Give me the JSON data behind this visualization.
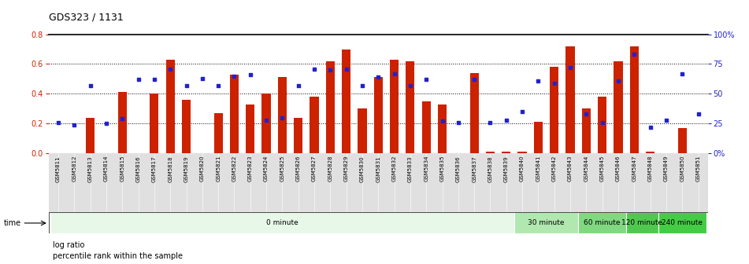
{
  "title": "GDS323 / 1131",
  "samples": [
    "GSM5811",
    "GSM5812",
    "GSM5813",
    "GSM5814",
    "GSM5815",
    "GSM5816",
    "GSM5817",
    "GSM5818",
    "GSM5819",
    "GSM5820",
    "GSM5821",
    "GSM5822",
    "GSM5823",
    "GSM5824",
    "GSM5825",
    "GSM5826",
    "GSM5827",
    "GSM5828",
    "GSM5829",
    "GSM5830",
    "GSM5831",
    "GSM5832",
    "GSM5833",
    "GSM5834",
    "GSM5835",
    "GSM5836",
    "GSM5837",
    "GSM5838",
    "GSM5839",
    "GSM5840",
    "GSM5841",
    "GSM5842",
    "GSM5843",
    "GSM5844",
    "GSM5845",
    "GSM5846",
    "GSM5847",
    "GSM5848",
    "GSM5849",
    "GSM5850",
    "GSM5851"
  ],
  "log_ratio": [
    0.0,
    0.0,
    0.24,
    0.0,
    0.41,
    0.0,
    0.4,
    0.63,
    0.36,
    0.0,
    0.27,
    0.53,
    0.33,
    0.4,
    0.51,
    0.24,
    0.38,
    0.62,
    0.7,
    0.3,
    0.51,
    0.63,
    0.62,
    0.35,
    0.33,
    0.0,
    0.54,
    0.01,
    0.01,
    0.01,
    0.21,
    0.58,
    0.72,
    0.3,
    0.38,
    0.62,
    0.72,
    0.01,
    0.0,
    0.17,
    0.0
  ],
  "percentile": [
    26,
    24,
    57,
    25,
    29,
    62,
    62,
    71,
    57,
    63,
    57,
    65,
    66,
    28,
    30,
    57,
    71,
    70,
    71,
    57,
    64,
    67,
    57,
    62,
    27,
    26,
    62,
    26,
    28,
    35,
    61,
    59,
    72,
    33,
    26,
    61,
    83,
    22,
    28,
    67,
    33
  ],
  "time_groups": [
    {
      "label": "0 minute",
      "start": 0,
      "end": 29,
      "color": "#e8f8e8"
    },
    {
      "label": "30 minute",
      "start": 29,
      "end": 33,
      "color": "#b0e8b0"
    },
    {
      "label": "60 minute",
      "start": 33,
      "end": 36,
      "color": "#80d880"
    },
    {
      "label": "120 minute",
      "start": 36,
      "end": 38,
      "color": "#50c850"
    },
    {
      "label": "240 minute",
      "start": 38,
      "end": 41,
      "color": "#44cc44"
    }
  ],
  "bar_color": "#cc2200",
  "dot_color": "#2222cc",
  "ylim_left": [
    0,
    0.8
  ],
  "ylim_right": [
    0,
    100
  ],
  "yticks_left": [
    0,
    0.2,
    0.4,
    0.6,
    0.8
  ],
  "yticks_right": [
    0,
    25,
    50,
    75,
    100
  ],
  "ytick_labels_right": [
    "0%",
    "25",
    "50",
    "75",
    "100%"
  ],
  "gridlines": [
    0.2,
    0.4,
    0.6
  ]
}
